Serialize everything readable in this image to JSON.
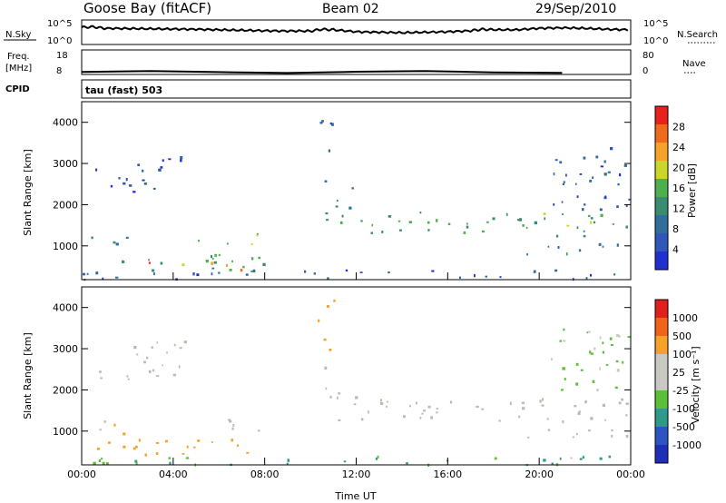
{
  "header": {
    "station": "Goose Bay (fitACF)",
    "beam": "Beam 02",
    "date": "29/Sep/2010"
  },
  "strips": {
    "nsky_label": "N.Sky",
    "nsky_ticks": [
      "10^5",
      "10^0"
    ],
    "nsearch_label": "N.Search",
    "nsearch_ticks": [
      "10^5",
      "10^0"
    ],
    "freq_label": "Freq.",
    "freq_unit": "[MHz]",
    "freq_ticks": [
      "18",
      "8"
    ],
    "nave_label": "Nave",
    "nave_ticks": [
      "80",
      "0"
    ],
    "cpid_label": "CPID",
    "cpid_text": "tau (fast) 503"
  },
  "colors": {
    "power_scale": [
      "#1f2fd0",
      "#2e57b7",
      "#2f6e9a",
      "#3a8b6f",
      "#4fae4e",
      "#c9d72a",
      "#f5a22a",
      "#f06a1b",
      "#e7211b"
    ],
    "velocity_scale": [
      "#e0211b",
      "#f0641a",
      "#f5a12a",
      "#c8c9c0",
      "#c8c9c0",
      "#5bbf3a",
      "#2f9a8a",
      "#2d53c5",
      "#1e2fb7"
    ],
    "ground_scatter": "#b8bab2"
  },
  "chart_data": [
    {
      "type": "line",
      "title": "N.Sky / N.Search",
      "x_range_hours": [
        0,
        24
      ],
      "series": [
        {
          "x": [
            0,
            0.5,
            1,
            2,
            3,
            4,
            5,
            6,
            7,
            8,
            9,
            10,
            10.5,
            11,
            12,
            13,
            14,
            15,
            16,
            17,
            17.5,
            18,
            19,
            20,
            21,
            22,
            23,
            24
          ],
          "y": [
            0.7,
            0.72,
            0.66,
            0.65,
            0.64,
            0.63,
            0.62,
            0.6,
            0.58,
            0.56,
            0.55,
            0.55,
            0.62,
            0.6,
            0.52,
            0.5,
            0.48,
            0.5,
            0.52,
            0.56,
            0.62,
            0.6,
            0.6,
            0.66,
            0.68,
            0.66,
            0.62,
            0.6
          ]
        }
      ]
    },
    {
      "type": "line",
      "title": "Freq / Nave",
      "x_range_hours": [
        0,
        24
      ],
      "series": [
        {
          "x": [
            0,
            24
          ],
          "y": [
            0.1,
            0.1
          ]
        }
      ]
    },
    {
      "type": "heatmap",
      "ylabel": "Slant Range [km]",
      "y_ticks": [
        "1000",
        "2000",
        "3000",
        "4000"
      ],
      "ylim": [
        180,
        4500
      ],
      "x_ticks": [],
      "colorbar_label": "Power [dB]",
      "colorbar_ticks": [
        "4",
        "8",
        "12",
        "16",
        "20",
        "24",
        "28"
      ],
      "colorbar_range": [
        0,
        30
      ],
      "regions": [
        {
          "t0": 0.6,
          "t1": 4.6,
          "r0": 2050,
          "r1": 2950,
          "val": 5,
          "kind": "band",
          "slope": 0.9
        },
        {
          "t0": 0.0,
          "t1": 24,
          "r0": 200,
          "r1": 430,
          "val": 6,
          "kind": "fill"
        },
        {
          "t0": 0.3,
          "t1": 8.0,
          "r0": 400,
          "r1": 820,
          "val": 13,
          "kind": "fill"
        },
        {
          "t0": 2.5,
          "t1": 3.2,
          "r0": 560,
          "r1": 780,
          "val": 27,
          "kind": "fill"
        },
        {
          "t0": 4.2,
          "t1": 7.6,
          "r0": 420,
          "r1": 640,
          "val": 20,
          "kind": "fill"
        },
        {
          "t0": 5.0,
          "t1": 7.8,
          "r0": 1000,
          "r1": 1320,
          "val": 16,
          "kind": "fill"
        },
        {
          "t0": 0.3,
          "t1": 2.0,
          "r0": 900,
          "r1": 1350,
          "val": 9,
          "kind": "fill"
        },
        {
          "t0": 10.6,
          "t1": 12.0,
          "r0": 1650,
          "r1": 2600,
          "val": 10,
          "kind": "fill"
        },
        {
          "t0": 10.3,
          "t1": 11.0,
          "r0": 3000,
          "r1": 4200,
          "val": 6,
          "kind": "fill"
        },
        {
          "t0": 11.0,
          "t1": 24,
          "r0": 1250,
          "r1": 1850,
          "val": 14,
          "kind": "band",
          "slope": -0.035
        },
        {
          "t0": 19.0,
          "t1": 24,
          "r0": 800,
          "r1": 1100,
          "val": 8,
          "kind": "fill"
        },
        {
          "t0": 20.5,
          "t1": 24,
          "r0": 1900,
          "r1": 3500,
          "val": 6,
          "kind": "fill"
        }
      ]
    },
    {
      "type": "heatmap",
      "ylabel": "Slant Range [km]",
      "y_ticks": [
        "1000",
        "2000",
        "3000",
        "4000"
      ],
      "ylim": [
        180,
        4500
      ],
      "xlabel": "Time UT",
      "x_ticks": [
        "00:00",
        "04:00",
        "08:00",
        "12:00",
        "16:00",
        "20:00",
        "00:00"
      ],
      "colorbar_label": "Velocity [m s⁻¹]",
      "colorbar_ticks": [
        "1000",
        "500",
        "100",
        "25",
        "-25",
        "-100",
        "-500",
        "-1000"
      ],
      "colorbar_range": [
        -1200,
        1200
      ],
      "regions": [
        {
          "t0": 0.6,
          "t1": 4.6,
          "r0": 2050,
          "r1": 2950,
          "val": 0,
          "kind": "band",
          "slope": 0.9
        },
        {
          "t0": 0.0,
          "t1": 24,
          "r0": 200,
          "r1": 430,
          "val": 80,
          "kind": "fill"
        },
        {
          "t0": 0.3,
          "t1": 8.0,
          "r0": 400,
          "r1": 820,
          "val": -250,
          "kind": "fill"
        },
        {
          "t0": 5.0,
          "t1": 7.8,
          "r0": 1000,
          "r1": 1320,
          "val": 0,
          "kind": "fill"
        },
        {
          "t0": 0.3,
          "t1": 2.0,
          "r0": 900,
          "r1": 1350,
          "val": -120,
          "kind": "fill"
        },
        {
          "t0": 10.6,
          "t1": 12.0,
          "r0": 1650,
          "r1": 2600,
          "val": 0,
          "kind": "fill"
        },
        {
          "t0": 10.3,
          "t1": 11.0,
          "r0": 3000,
          "r1": 4200,
          "val": -300,
          "kind": "fill"
        },
        {
          "t0": 11.0,
          "t1": 24,
          "r0": 1250,
          "r1": 1850,
          "val": 0,
          "kind": "band",
          "slope": -0.035
        },
        {
          "t0": 19.0,
          "t1": 24,
          "r0": 800,
          "r1": 1100,
          "val": 0,
          "kind": "fill"
        },
        {
          "t0": 20.5,
          "t1": 24,
          "r0": 1900,
          "r1": 3500,
          "val": 20,
          "kind": "fill"
        }
      ]
    }
  ]
}
